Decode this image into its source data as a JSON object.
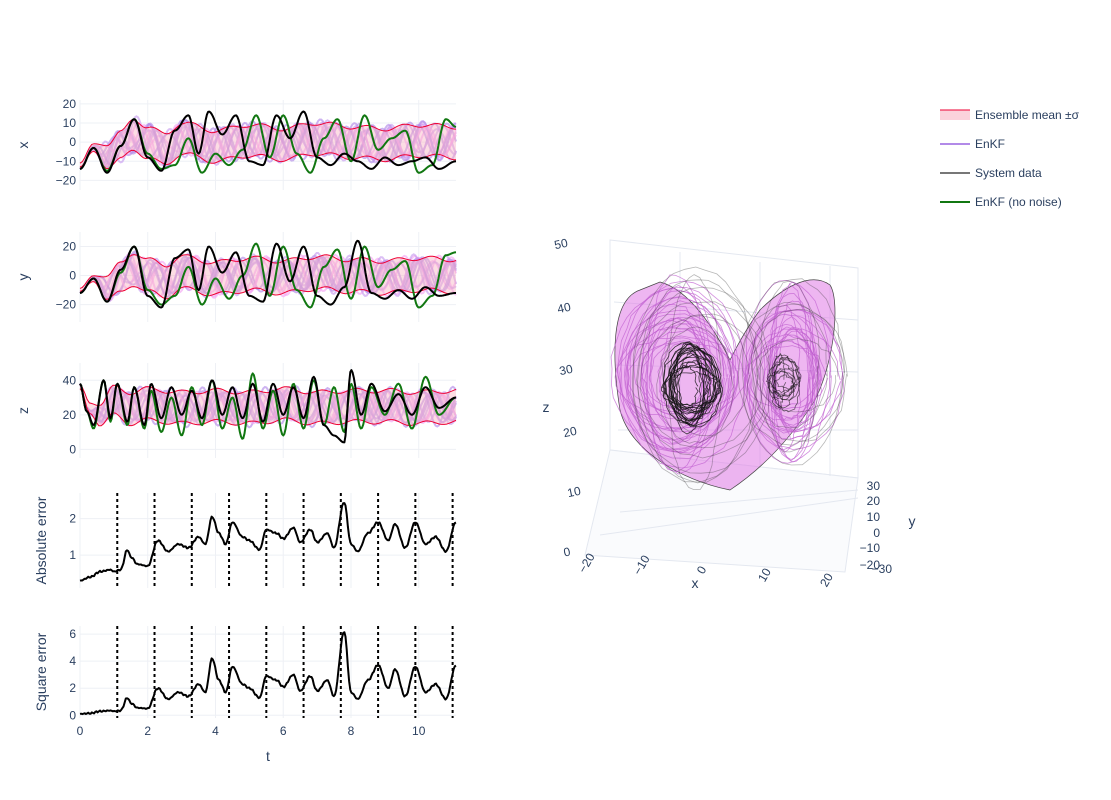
{
  "chart_data": {
    "type": "line",
    "xlabel": "t",
    "xlim": [
      0,
      11.1
    ],
    "x_ticks": [
      0,
      2,
      4,
      6,
      8,
      10
    ],
    "x_tick_labels": [
      "0",
      "2",
      "4",
      "6",
      "8",
      "10"
    ],
    "legend": {
      "placement": "top-right",
      "entries": [
        "Ensemble mean ±σ",
        "EnKF",
        "System data",
        "EnKF (no noise)"
      ]
    },
    "colors": {
      "band_fill": "#f8b4c4",
      "band_line": "#ee0033",
      "enkf": "#b28ae8",
      "system": "#000000",
      "enkf_no_noise": "#117711",
      "grid": "#eef0f5",
      "text": "#2a3f5f"
    },
    "subplots": [
      {
        "id": "x",
        "ylabel": "x",
        "ylim": [
          -25,
          22
        ],
        "y_ticks": [
          -20,
          -10,
          0,
          10,
          20
        ],
        "y_tick_labels": [
          "−20",
          "−10",
          "0",
          "10",
          "20"
        ],
        "series": [
          {
            "name": "System data",
            "t": [
              0,
              0.4,
              0.8,
              1.2,
              1.6,
              2.0,
              2.4,
              2.8,
              3.2,
              3.5,
              3.8,
              4.2,
              4.6,
              5.0,
              5.4,
              5.8,
              6.2,
              6.6,
              7.0,
              7.4,
              7.8,
              8.2,
              8.6,
              9.0,
              9.4,
              9.8,
              10.2,
              10.6,
              11.1
            ],
            "values": [
              -14,
              -3,
              -16,
              -2,
              12,
              -8,
              -15,
              6,
              14,
              -6,
              16,
              4,
              14,
              -10,
              -12,
              14,
              2,
              16,
              -8,
              -12,
              -6,
              -10,
              -14,
              -8,
              -12,
              -10,
              -8,
              -14,
              -10
            ]
          },
          {
            "name": "EnKF (no noise)",
            "t": [
              0,
              0.4,
              0.8,
              1.2,
              1.6,
              2.0,
              2.4,
              2.8,
              3.2,
              3.6,
              4.0,
              4.4,
              4.8,
              5.2,
              5.6,
              6.0,
              6.4,
              6.8,
              7.2,
              7.6,
              8.0,
              8.4,
              8.8,
              9.2,
              9.6,
              10.0,
              10.4,
              10.8,
              11.1
            ],
            "values": [
              -14,
              -3,
              -15,
              -2,
              12,
              -6,
              -14,
              -12,
              2,
              -16,
              -6,
              -12,
              -4,
              14,
              -8,
              14,
              -6,
              -16,
              2,
              12,
              -10,
              14,
              -4,
              2,
              6,
              -16,
              -12,
              12,
              8
            ]
          },
          {
            "name": "Ensemble mean ±σ",
            "t": [
              0,
              0.4,
              0.8,
              1.2,
              1.6,
              2.0,
              2.5,
              3.0,
              4.0,
              5.0,
              6.0,
              7.0,
              8.0,
              9.0,
              10.0,
              11.1
            ],
            "mean": [
              -12,
              -3,
              -7,
              -2,
              4,
              0,
              -4,
              2,
              -2,
              1,
              -1,
              2,
              0,
              -1,
              1,
              0
            ],
            "sigma": [
              1,
              2,
              6,
              7,
              8,
              8,
              8,
              8,
              8,
              8,
              8,
              8,
              8,
              8,
              8,
              8
            ]
          }
        ]
      },
      {
        "id": "y",
        "ylabel": "y",
        "ylim": [
          -32,
          30
        ],
        "y_ticks": [
          -20,
          0,
          20
        ],
        "y_tick_labels": [
          "−20",
          "0",
          "20"
        ],
        "series": [
          {
            "name": "System data",
            "t": [
              0,
              0.4,
              0.8,
              1.2,
              1.6,
              2.0,
              2.4,
              2.8,
              3.2,
              3.5,
              3.8,
              4.2,
              4.6,
              5.0,
              5.4,
              5.8,
              6.2,
              6.6,
              7.0,
              7.4,
              7.8,
              8.2,
              8.6,
              9.0,
              9.4,
              9.8,
              10.2,
              10.6,
              11.1
            ],
            "values": [
              -12,
              -2,
              -18,
              4,
              20,
              -14,
              -22,
              12,
              18,
              -10,
              20,
              2,
              16,
              -14,
              -18,
              22,
              -4,
              20,
              -14,
              -20,
              -8,
              24,
              -12,
              -16,
              -10,
              -16,
              -8,
              -14,
              -12
            ]
          },
          {
            "name": "EnKF (no noise)",
            "t": [
              0,
              0.4,
              0.8,
              1.2,
              1.6,
              2.0,
              2.4,
              2.8,
              3.2,
              3.6,
              4.0,
              4.4,
              4.8,
              5.2,
              5.6,
              6.0,
              6.4,
              6.8,
              7.2,
              7.6,
              8.0,
              8.4,
              8.8,
              9.2,
              9.6,
              10.0,
              10.4,
              10.8,
              11.1
            ],
            "values": [
              -12,
              -2,
              -18,
              2,
              20,
              -10,
              -20,
              -14,
              6,
              -20,
              -2,
              -16,
              0,
              22,
              -14,
              20,
              -10,
              -22,
              6,
              18,
              -16,
              20,
              -8,
              4,
              10,
              -22,
              -14,
              14,
              16
            ]
          },
          {
            "name": "Ensemble mean ±σ",
            "t": [
              0,
              0.4,
              0.8,
              1.2,
              1.6,
              2.0,
              2.5,
              3.0,
              4.0,
              5.0,
              6.0,
              7.0,
              8.0,
              9.0,
              10.0,
              11.1
            ],
            "mean": [
              -10,
              -2,
              -8,
              -2,
              5,
              0,
              -4,
              2,
              -2,
              1,
              -1,
              2,
              0,
              -1,
              1,
              0
            ],
            "sigma": [
              1,
              2,
              8,
              10,
              11,
              11,
              11,
              11,
              11,
              11,
              11,
              11,
              11,
              11,
              11,
              11
            ]
          }
        ]
      },
      {
        "id": "z",
        "ylabel": "z",
        "ylim": [
          -5,
          50
        ],
        "y_ticks": [
          0,
          20,
          40
        ],
        "y_tick_labels": [
          "0",
          "20",
          "40"
        ],
        "series": [
          {
            "name": "System data",
            "t": [
              0,
              0.2,
              0.4,
              0.7,
              0.9,
              1.1,
              1.4,
              1.6,
              1.9,
              2.1,
              2.4,
              2.7,
              3.0,
              3.3,
              3.6,
              3.9,
              4.2,
              4.5,
              4.8,
              5.1,
              5.4,
              5.7,
              6.0,
              6.3,
              6.6,
              6.9,
              7.2,
              7.5,
              7.8,
              8.0,
              8.3,
              8.6,
              9.0,
              9.4,
              9.8,
              10.2,
              10.6,
              11.1
            ],
            "values": [
              38,
              22,
              14,
              40,
              18,
              38,
              16,
              36,
              14,
              38,
              18,
              36,
              20,
              34,
              18,
              40,
              20,
              36,
              18,
              38,
              16,
              38,
              20,
              36,
              18,
              42,
              14,
              8,
              4,
              46,
              20,
              38,
              22,
              32,
              20,
              36,
              24,
              30
            ]
          },
          {
            "name": "EnKF (no noise)",
            "t": [
              0,
              0.2,
              0.4,
              0.7,
              0.9,
              1.1,
              1.4,
              1.6,
              1.9,
              2.1,
              2.4,
              2.7,
              3.0,
              3.3,
              3.6,
              3.9,
              4.2,
              4.5,
              4.8,
              5.1,
              5.4,
              5.7,
              6.0,
              6.3,
              6.6,
              6.9,
              7.2,
              7.5,
              7.8,
              8.0,
              8.3,
              8.6,
              9.0,
              9.4,
              9.8,
              10.2,
              10.6,
              11.1
            ],
            "values": [
              38,
              22,
              12,
              40,
              16,
              38,
              14,
              36,
              12,
              34,
              10,
              30,
              8,
              36,
              14,
              40,
              12,
              30,
              6,
              44,
              12,
              34,
              8,
              38,
              12,
              40,
              14,
              36,
              10,
              38,
              12,
              36,
              20,
              38,
              12,
              42,
              20,
              30
            ]
          },
          {
            "name": "Ensemble mean ±σ",
            "t": [
              0,
              0.3,
              0.6,
              1.0,
              1.5,
              2.0,
              3.0,
              4.0,
              5.0,
              6.0,
              7.0,
              8.0,
              9.0,
              10.0,
              11.1
            ],
            "mean": [
              36,
              24,
              20,
              28,
              24,
              26,
              24,
              25,
              24,
              26,
              24,
              25,
              25,
              24,
              25
            ],
            "sigma": [
              1,
              3,
              6,
              8,
              9,
              9,
              9,
              9,
              9,
              9,
              9,
              9,
              9,
              9,
              9
            ]
          }
        ]
      },
      {
        "id": "abs",
        "ylabel": "Absolute error",
        "ylim": [
          0.1,
          2.7
        ],
        "y_ticks": [
          1,
          2
        ],
        "y_tick_labels": [
          "1",
          "2"
        ],
        "vlines": [
          1.1,
          2.2,
          3.3,
          4.4,
          5.5,
          6.6,
          7.7,
          8.8,
          9.9,
          11.0
        ],
        "series": [
          {
            "name": "Absolute error",
            "t": [
              0,
              0.3,
              0.6,
              0.9,
              1.0,
              1.2,
              1.4,
              1.5,
              1.7,
              2.0,
              2.3,
              2.6,
              2.9,
              3.2,
              3.5,
              3.7,
              3.9,
              4.1,
              4.3,
              4.5,
              4.8,
              5.0,
              5.3,
              5.5,
              5.8,
              6.0,
              6.3,
              6.5,
              6.8,
              7.0,
              7.3,
              7.5,
              7.8,
              8.0,
              8.2,
              8.5,
              8.8,
              9.1,
              9.3,
              9.6,
              9.9,
              10.2,
              10.5,
              10.8,
              11.1
            ],
            "values": [
              0.3,
              0.4,
              0.55,
              0.6,
              0.55,
              0.6,
              1.15,
              0.95,
              0.75,
              0.7,
              1.4,
              1.1,
              1.3,
              1.2,
              1.5,
              1.3,
              2.05,
              1.6,
              1.3,
              1.9,
              1.5,
              1.4,
              1.15,
              1.7,
              1.6,
              1.45,
              1.75,
              1.35,
              1.7,
              1.35,
              1.6,
              1.2,
              2.45,
              1.3,
              1.1,
              1.6,
              1.9,
              1.4,
              1.85,
              1.2,
              1.9,
              1.3,
              1.5,
              1.1,
              1.9
            ]
          }
        ]
      },
      {
        "id": "sq",
        "ylabel": "Square error",
        "ylim": [
          -0.2,
          6.6
        ],
        "y_ticks": [
          0,
          2,
          4,
          6
        ],
        "y_tick_labels": [
          "0",
          "2",
          "4",
          "6"
        ],
        "vlines": [
          1.1,
          2.2,
          3.3,
          4.4,
          5.5,
          6.6,
          7.7,
          8.8,
          9.9,
          11.0
        ],
        "series": [
          {
            "name": "Square error",
            "t": [
              0,
              0.3,
              0.6,
              0.9,
              1.0,
              1.2,
              1.4,
              1.5,
              1.7,
              2.0,
              2.3,
              2.6,
              2.9,
              3.2,
              3.5,
              3.7,
              3.9,
              4.1,
              4.3,
              4.5,
              4.8,
              5.0,
              5.3,
              5.5,
              5.8,
              6.0,
              6.3,
              6.5,
              6.8,
              7.0,
              7.3,
              7.5,
              7.8,
              8.0,
              8.2,
              8.5,
              8.8,
              9.1,
              9.3,
              9.6,
              9.9,
              10.2,
              10.5,
              10.8,
              11.1
            ],
            "values": [
              0.1,
              0.15,
              0.3,
              0.35,
              0.3,
              0.35,
              1.3,
              0.9,
              0.55,
              0.5,
              2.0,
              1.2,
              1.7,
              1.4,
              2.3,
              1.7,
              4.2,
              2.6,
              1.7,
              3.6,
              2.3,
              2.0,
              1.3,
              2.9,
              2.6,
              2.1,
              3.0,
              1.8,
              2.9,
              1.8,
              2.6,
              1.4,
              6.2,
              1.7,
              1.2,
              2.6,
              3.7,
              2.0,
              3.4,
              1.4,
              3.6,
              1.7,
              2.3,
              1.2,
              3.7
            ]
          }
        ]
      }
    ],
    "panel3d": {
      "type": "scatter3d",
      "xlabel": "x",
      "ylabel": "y",
      "zlabel": "z",
      "x_ticks": [
        -20,
        -10,
        0,
        10,
        20
      ],
      "x_tick_labels": [
        "−20",
        "−10",
        "0",
        "10",
        "20"
      ],
      "y_ticks": [
        30,
        20,
        10,
        0,
        -10,
        -20,
        -30
      ],
      "y_tick_labels": [
        "30",
        "20",
        "10",
        "0",
        "−10",
        "−20",
        "−30"
      ],
      "z_ticks": [
        0,
        10,
        20,
        30,
        40,
        50
      ],
      "z_tick_labels": [
        "0",
        "10",
        "20",
        "30",
        "40",
        "50"
      ]
    }
  }
}
